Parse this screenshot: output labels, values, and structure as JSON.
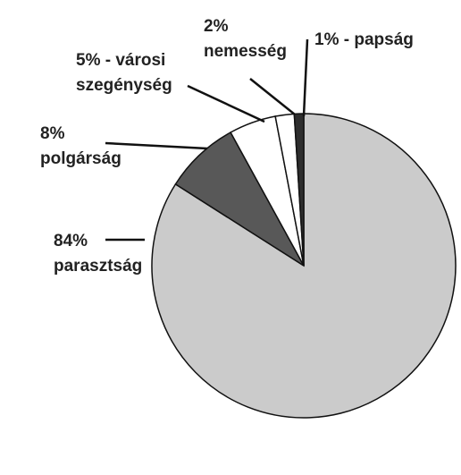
{
  "chart_data": {
    "type": "pie",
    "values": [
      84,
      8,
      5,
      2,
      1
    ],
    "labels": [
      [
        "84%",
        "parasztság"
      ],
      [
        "8%",
        "polgárság"
      ],
      [
        "5% - városi",
        "szegénység"
      ],
      [
        "2%",
        "nemesség"
      ],
      [
        "1% - papság"
      ]
    ],
    "colors": [
      "#cbcbcb",
      "#585858",
      "#ffffff",
      "#ffffff",
      "#2e2e2e"
    ],
    "start_angle": 0,
    "direction": "clockwise"
  }
}
